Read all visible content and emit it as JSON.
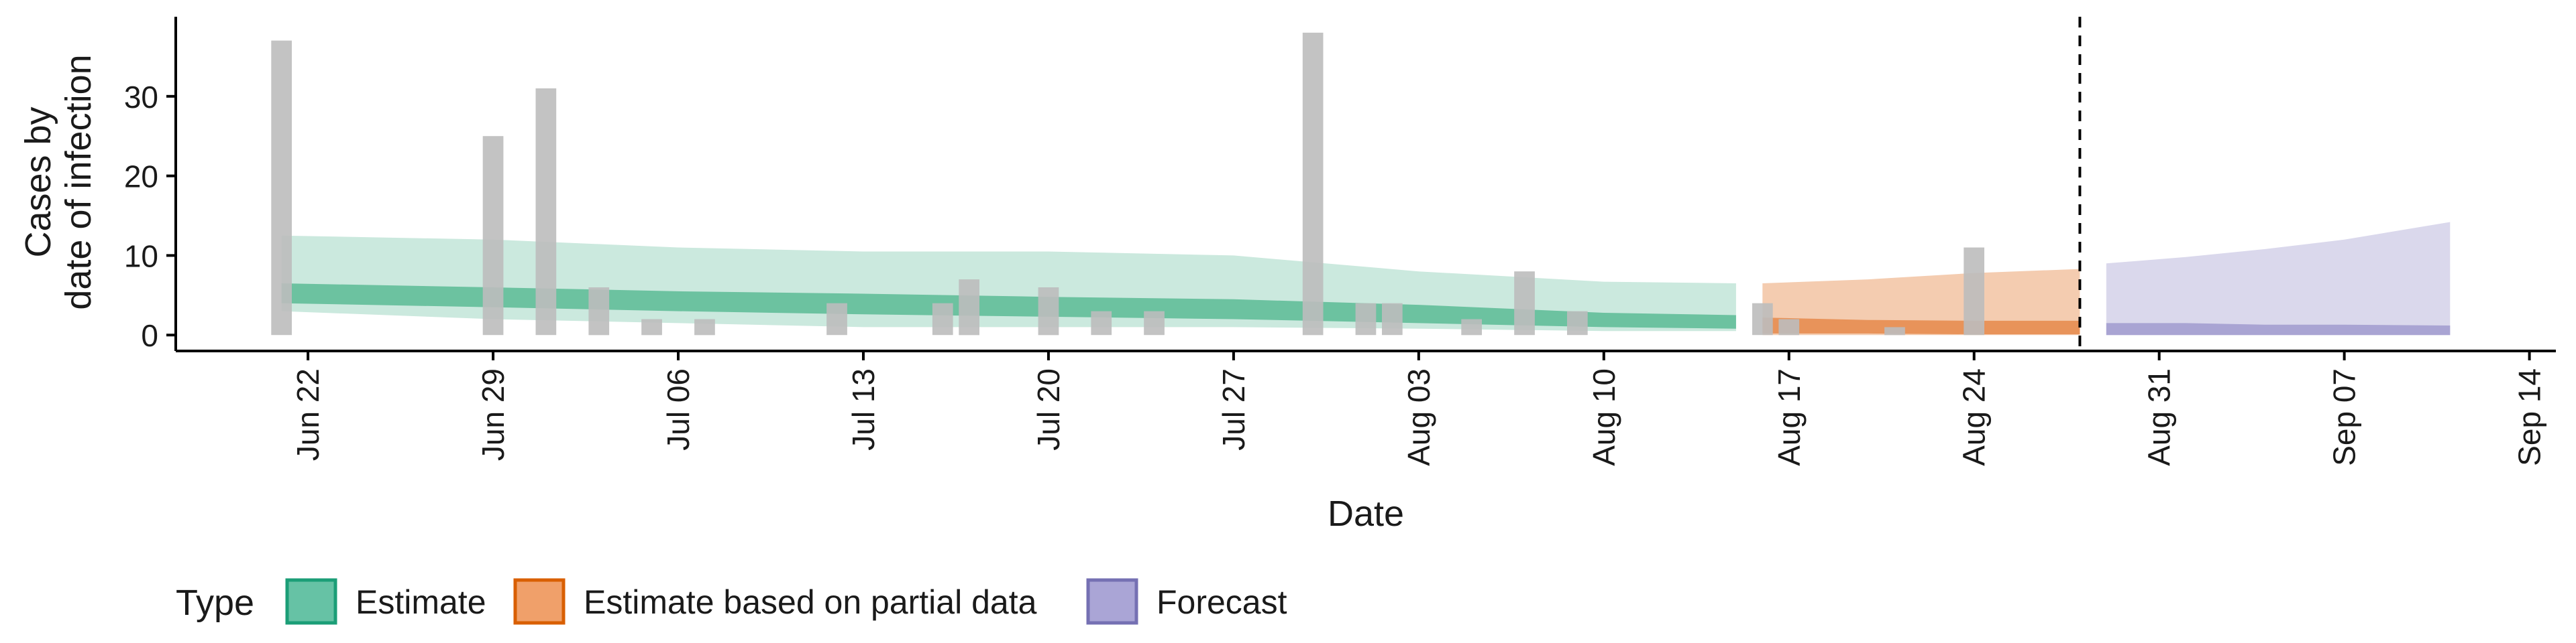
{
  "chart_data": {
    "type": "bar",
    "xlabel": "Date",
    "ylabel_lines": [
      "Cases by",
      "date of infection"
    ],
    "ylim": [
      -2,
      40
    ],
    "y_ticks": [
      0,
      10,
      20,
      30
    ],
    "x_ticks": [
      "Jun 22",
      "Jun 29",
      "Jul 06",
      "Jul 13",
      "Jul 20",
      "Jul 27",
      "Aug 03",
      "Aug 10",
      "Aug 17",
      "Aug 24",
      "Aug 31",
      "Sep 07",
      "Sep 14"
    ],
    "x_range": [
      "2020-06-17",
      "2020-09-15"
    ],
    "forecast_start_marker": "2020-08-28",
    "legend": {
      "title": "Type",
      "position": "bottom",
      "entries": [
        {
          "label": "Estimate",
          "fill": "#66c2a5",
          "stroke": "#1b9e77"
        },
        {
          "label": "Estimate based on partial data",
          "fill": "#f0a06a",
          "stroke": "#d95f02"
        },
        {
          "label": "Forecast",
          "fill": "#aaa5d6",
          "stroke": "#7570b3"
        }
      ]
    },
    "colors": {
      "observed_bar": "#bdbdbd",
      "estimate_outer": "#cbe9de",
      "estimate_inner": "#6cc2a0",
      "partial_outer": "#f4ccb0",
      "partial_inner": "#e8935a",
      "forecast_outer": "#dad8ec",
      "forecast_inner": "#a9a4d3"
    },
    "observed_cases": [
      {
        "date": "2020-06-21",
        "value": 37
      },
      {
        "date": "2020-06-29",
        "value": 25
      },
      {
        "date": "2020-07-01",
        "value": 31
      },
      {
        "date": "2020-07-03",
        "value": 6
      },
      {
        "date": "2020-07-05",
        "value": 2
      },
      {
        "date": "2020-07-07",
        "value": 2
      },
      {
        "date": "2020-07-12",
        "value": 4
      },
      {
        "date": "2020-07-16",
        "value": 4
      },
      {
        "date": "2020-07-17",
        "value": 7
      },
      {
        "date": "2020-07-20",
        "value": 6
      },
      {
        "date": "2020-07-22",
        "value": 3
      },
      {
        "date": "2020-07-24",
        "value": 3
      },
      {
        "date": "2020-07-30",
        "value": 38
      },
      {
        "date": "2020-08-01",
        "value": 4
      },
      {
        "date": "2020-08-02",
        "value": 4
      },
      {
        "date": "2020-08-05",
        "value": 2
      },
      {
        "date": "2020-08-07",
        "value": 8
      },
      {
        "date": "2020-08-09",
        "value": 3
      },
      {
        "date": "2020-08-16",
        "value": 4
      },
      {
        "date": "2020-08-17",
        "value": 2
      },
      {
        "date": "2020-08-21",
        "value": 1
      },
      {
        "date": "2020-08-24",
        "value": 11
      }
    ],
    "series": [
      {
        "type": "Estimate",
        "dates": [
          "2020-06-21",
          "2020-06-29",
          "2020-07-06",
          "2020-07-13",
          "2020-07-20",
          "2020-07-27",
          "2020-08-03",
          "2020-08-10",
          "2020-08-15"
        ],
        "outer_lower": [
          3.0,
          2.0,
          1.5,
          1.0,
          1.0,
          1.0,
          0.8,
          0.5,
          0.5
        ],
        "outer_upper": [
          12.5,
          12.0,
          11.0,
          10.5,
          10.5,
          10.0,
          8.0,
          6.7,
          6.5
        ],
        "inner_lower": [
          4.0,
          3.5,
          3.0,
          2.6,
          2.3,
          2.0,
          1.5,
          1.0,
          0.8
        ],
        "inner_upper": [
          6.5,
          6.0,
          5.5,
          5.2,
          4.8,
          4.5,
          3.8,
          2.8,
          2.5
        ]
      },
      {
        "type": "Estimate based on partial data",
        "dates": [
          "2020-08-16",
          "2020-08-20",
          "2020-08-24",
          "2020-08-28"
        ],
        "outer_lower": [
          0,
          0,
          0,
          0
        ],
        "outer_upper": [
          6.5,
          7.0,
          7.8,
          8.3
        ],
        "inner_lower": [
          0.2,
          0.2,
          0.1,
          0.1
        ],
        "inner_upper": [
          2.2,
          1.9,
          1.8,
          1.8
        ]
      },
      {
        "type": "Forecast",
        "dates": [
          "2020-08-29",
          "2020-09-01",
          "2020-09-04",
          "2020-09-07",
          "2020-09-11"
        ],
        "outer_lower": [
          0,
          0,
          0,
          0,
          0
        ],
        "outer_upper": [
          9.0,
          9.8,
          10.8,
          12.0,
          14.2
        ],
        "inner_lower": [
          0,
          0,
          0,
          0,
          0
        ],
        "inner_upper": [
          1.5,
          1.5,
          1.3,
          1.3,
          1.2
        ]
      }
    ]
  }
}
